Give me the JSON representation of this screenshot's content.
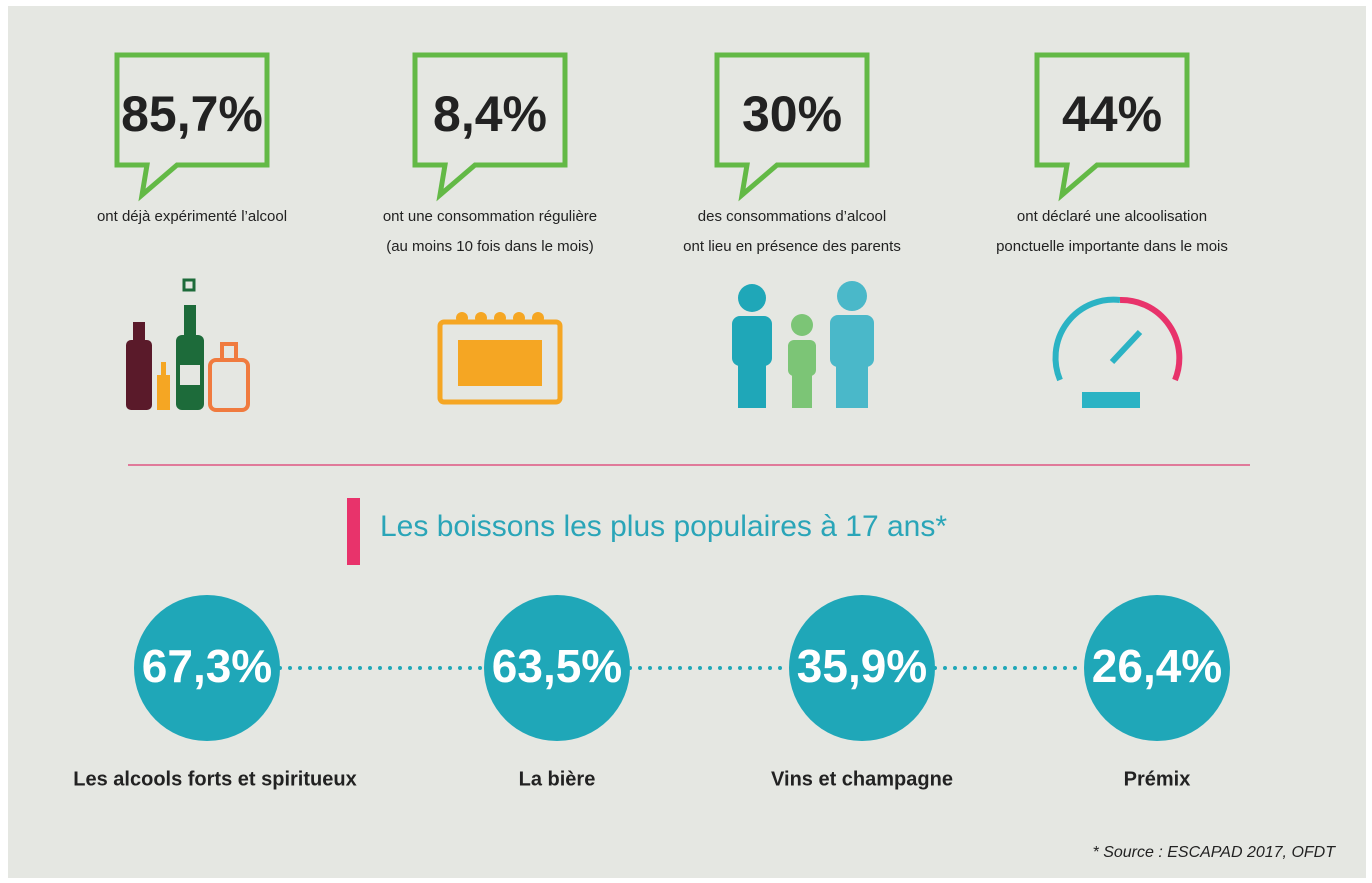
{
  "stats": [
    {
      "value": "85,7%",
      "caption": [
        "ont déjà expérimenté l’alcool"
      ]
    },
    {
      "value": "8,4%",
      "caption": [
        "ont une consommation régulière",
        "(au moins 10 fois dans le mois)"
      ]
    },
    {
      "value": "30%",
      "caption": [
        "des consommations d’alcool",
        "ont lieu en présence des parents"
      ]
    },
    {
      "value": "44%",
      "caption": [
        "ont déclaré une alcoolisation",
        "ponctuelle importante dans le mois"
      ]
    }
  ],
  "section_title": "Les boissons les plus populaires à 17 ans*",
  "drinks": [
    {
      "value": "67,3%",
      "label": "Les alcools forts et spiritueux"
    },
    {
      "value": "63,5%",
      "label": "La bière"
    },
    {
      "value": "35,9%",
      "label": "Vins et champagne"
    },
    {
      "value": "26,4%",
      "label": "Prémix"
    }
  ],
  "source": "* Source : ESCAPAD 2017, OFDT"
}
